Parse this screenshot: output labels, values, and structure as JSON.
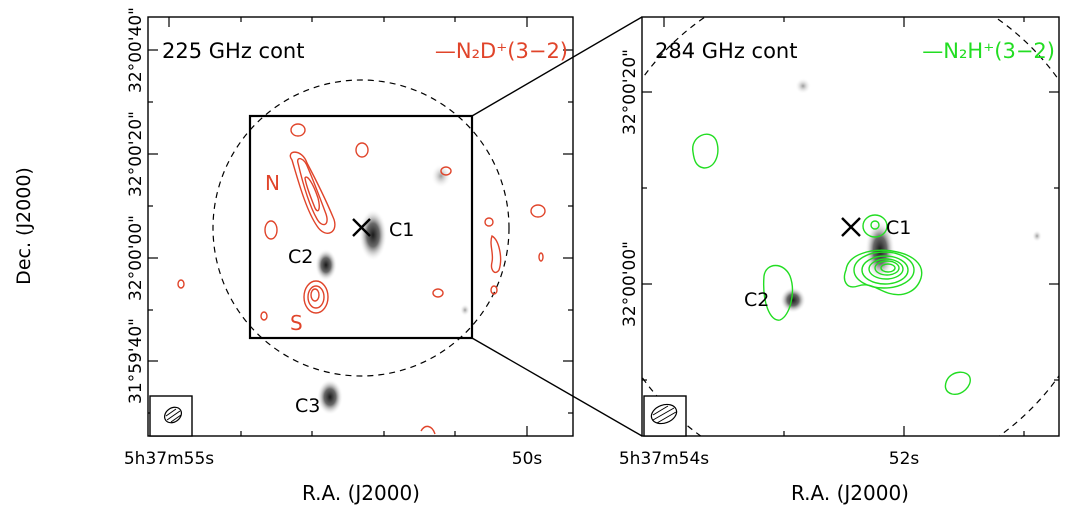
{
  "y_axis_label": "Dec. (J2000)",
  "chart_data": [
    {
      "type": "contour",
      "panel": "left",
      "continuum_label": "225 GHz cont",
      "contour_label": "—N₂D⁺(3−2)",
      "contour_color": "#e0442a",
      "xlabel": "R.A. (J2000)",
      "x_ticks": [
        "5h37m55s",
        "50s"
      ],
      "y_ticks": [
        "32°00'40\"",
        "32°00'20\"",
        "32°00'00\"",
        "31°59'40\""
      ],
      "sources": [
        "C1",
        "C2",
        "C3"
      ],
      "feature_labels": [
        "N",
        "S"
      ],
      "primary_beam_dashed_circle": true,
      "zoom_box": true,
      "beam_ellipse": "bottom-left"
    },
    {
      "type": "contour",
      "panel": "right",
      "continuum_label": "284 GHz cont",
      "contour_label": "—N₂H⁺(3−2)",
      "contour_color": "#22dd22",
      "xlabel": "R.A. (J2000)",
      "x_ticks": [
        "5h37m54s",
        "52s"
      ],
      "y_ticks": [
        "32°00'20\"",
        "32°00'00\""
      ],
      "sources": [
        "C1",
        "C2"
      ],
      "primary_beam_dashed_circle": true,
      "beam_ellipse": "bottom-left"
    }
  ]
}
